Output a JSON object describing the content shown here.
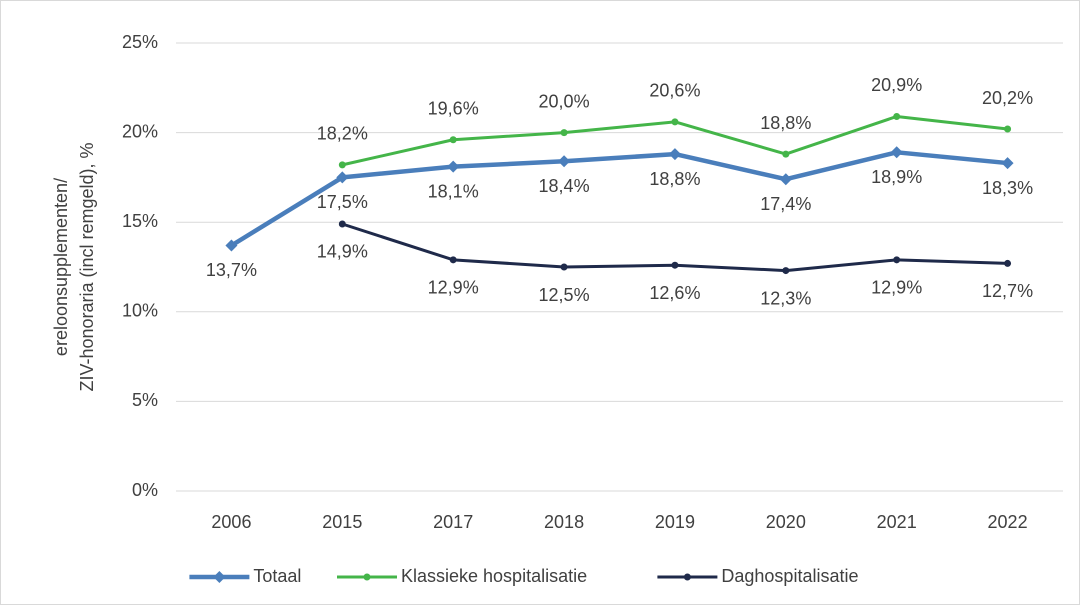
{
  "chart_data": {
    "type": "line",
    "ylabel": [
      "ereloonsupplementen/",
      "ZIV-honoraria (incl remgeld),  %"
    ],
    "categories": [
      "2006",
      "2015",
      "2017",
      "2018",
      "2019",
      "2020",
      "2021",
      "2022"
    ],
    "series": [
      {
        "name": "Totaal",
        "color": "#4a7ebb",
        "marker": "diamond",
        "values": [
          13.7,
          17.5,
          18.1,
          18.4,
          18.8,
          17.4,
          18.9,
          18.3
        ],
        "value_labels": [
          "13,7%",
          "17,5%",
          "18,1%",
          "18,4%",
          "18,8%",
          "17,4%",
          "18,9%",
          "18,3%"
        ]
      },
      {
        "name": "Klassieke hospitalisatie",
        "color": "#44b549",
        "marker": "circle",
        "values": [
          null,
          18.2,
          19.6,
          20.0,
          20.6,
          18.8,
          20.9,
          20.2
        ],
        "value_labels": [
          null,
          "18,2%",
          "19,6%",
          "20,0%",
          "20,6%",
          "18,8%",
          "20,9%",
          "20,2%"
        ]
      },
      {
        "name": "Daghospitalisatie",
        "color": "#1f2a4a",
        "marker": "circle",
        "values": [
          null,
          14.9,
          12.9,
          12.5,
          12.6,
          12.3,
          12.9,
          12.7
        ],
        "value_labels": [
          null,
          "14,9%",
          "12,9%",
          "12,5%",
          "12,6%",
          "12,3%",
          "12,9%",
          "12,7%"
        ]
      }
    ],
    "ylim": [
      0,
      25
    ],
    "yticks": [
      {
        "value": 0,
        "label": "0%"
      },
      {
        "value": 5,
        "label": "5%"
      },
      {
        "value": 10,
        "label": "10%"
      },
      {
        "value": 15,
        "label": "15%"
      },
      {
        "value": 20,
        "label": "20%"
      },
      {
        "value": 25,
        "label": "25%"
      }
    ],
    "grid": true,
    "legend": "bottom"
  }
}
